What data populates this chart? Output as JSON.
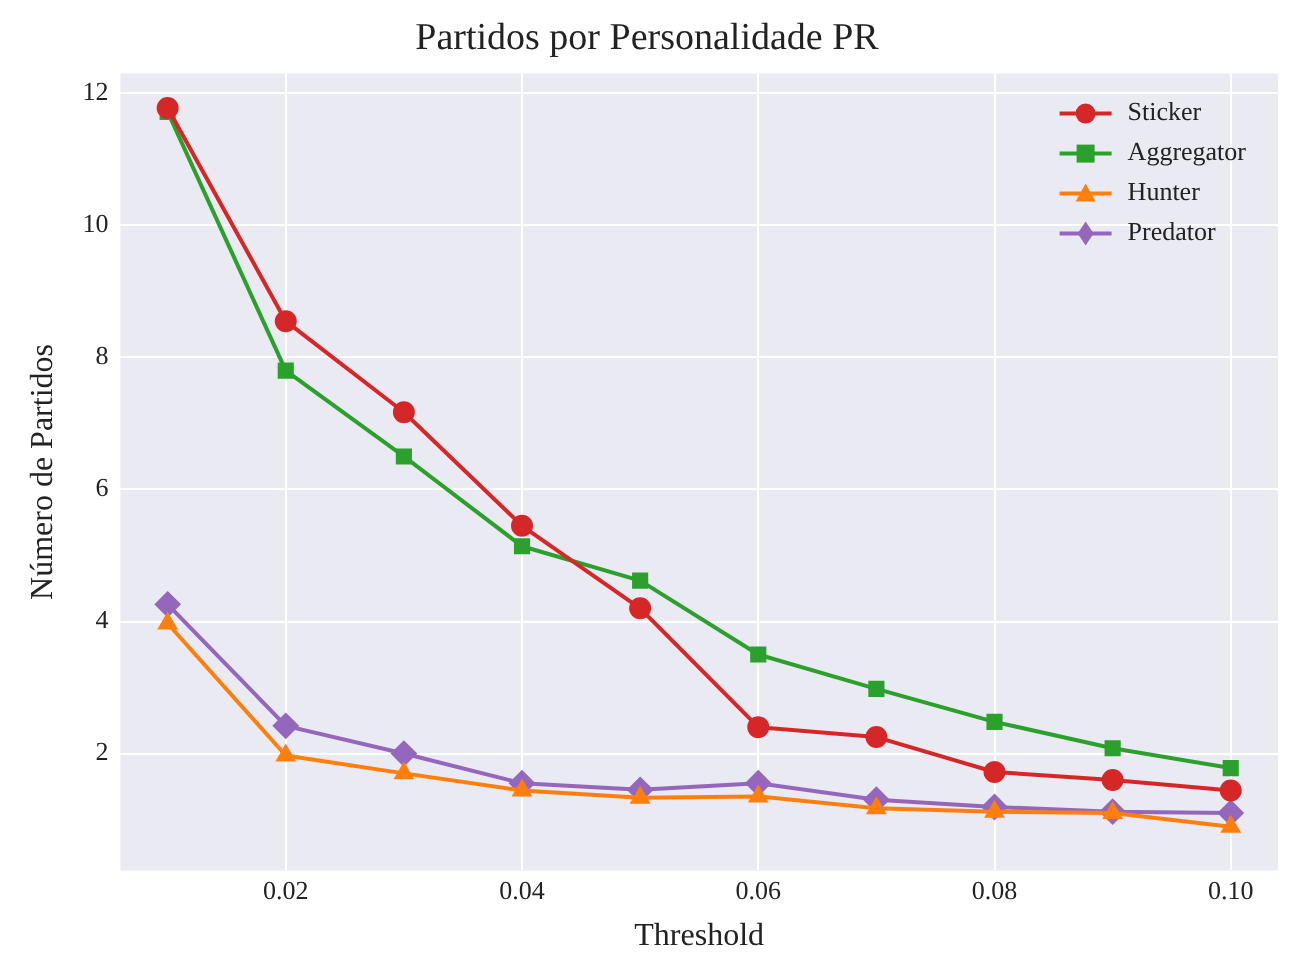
{
  "chart_data": {
    "type": "line",
    "title": "Partidos por Personalidade PR",
    "xlabel": "Threshold",
    "ylabel": "Número de Partidos",
    "x": [
      0.01,
      0.02,
      0.03,
      0.04,
      0.05,
      0.06,
      0.07,
      0.08,
      0.09,
      0.1
    ],
    "series": [
      {
        "name": "Sticker",
        "color": "#d62728",
        "marker": "circle",
        "values": [
          11.78,
          8.55,
          7.17,
          5.45,
          4.2,
          2.4,
          2.25,
          1.72,
          1.6,
          1.44
        ]
      },
      {
        "name": "Aggregator",
        "color": "#2ca02c",
        "marker": "square",
        "values": [
          11.72,
          7.8,
          6.5,
          5.14,
          4.62,
          3.5,
          2.98,
          2.48,
          2.08,
          1.78
        ]
      },
      {
        "name": "Hunter",
        "color": "#ff7f0e",
        "marker": "triangle",
        "values": [
          3.97,
          1.97,
          1.7,
          1.44,
          1.33,
          1.35,
          1.17,
          1.12,
          1.1,
          0.89
        ]
      },
      {
        "name": "Predator",
        "color": "#9467bd",
        "marker": "diamond",
        "values": [
          4.26,
          2.42,
          2.0,
          1.55,
          1.45,
          1.55,
          1.3,
          1.19,
          1.12,
          1.1
        ]
      }
    ],
    "xlim": [
      0.006,
      0.104
    ],
    "ylim": [
      0.23,
      12.3
    ],
    "xticks": [
      0.02,
      0.04,
      0.06,
      0.08,
      {
        "value": 0.1,
        "label": "0.10"
      }
    ],
    "yticks": [
      2,
      4,
      6,
      8,
      10,
      12
    ],
    "grid": true,
    "legend": "top right",
    "line_style": "solid"
  }
}
